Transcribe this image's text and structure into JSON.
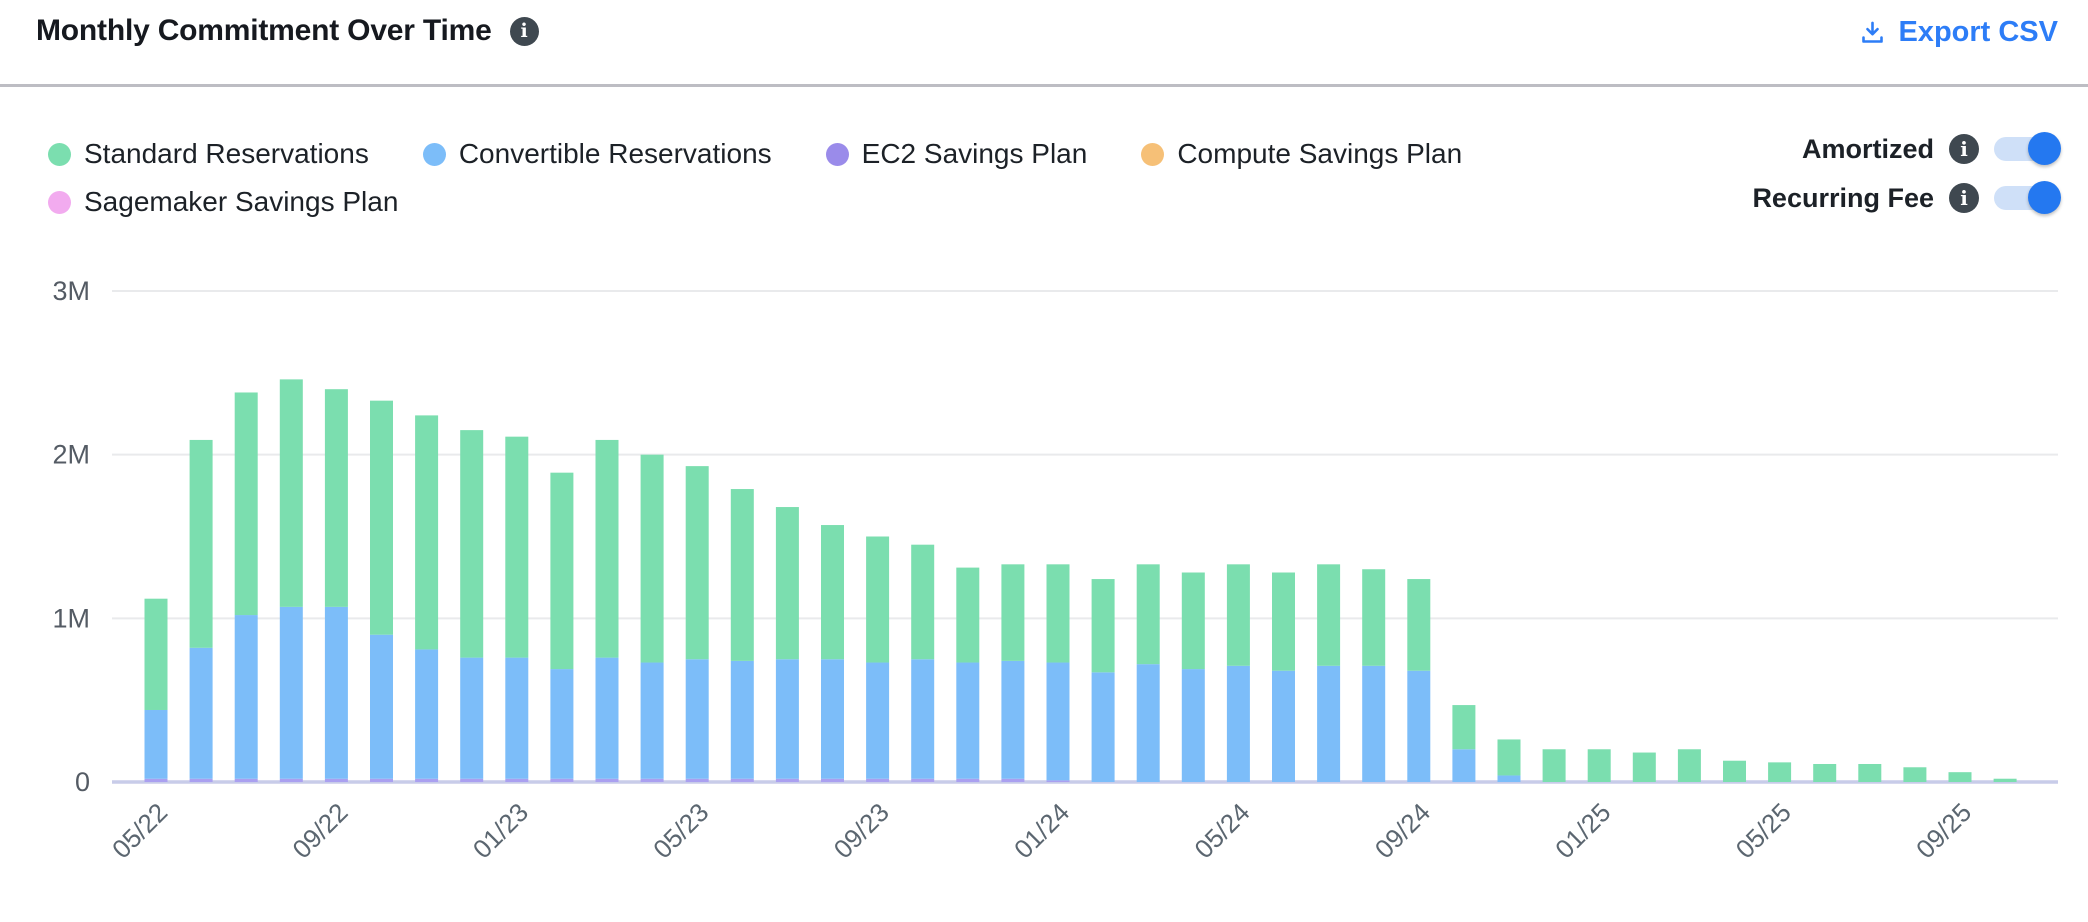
{
  "header": {
    "title": "Monthly Commitment Over Time",
    "export_label": "Export CSV",
    "export_color": "#2d7df7"
  },
  "legend": {
    "items": [
      {
        "label": "Standard Reservations",
        "color": "#7bdeaf"
      },
      {
        "label": "Convertible Reservations",
        "color": "#7cbdf9"
      },
      {
        "label": "EC2 Savings Plan",
        "color": "#9a8bea"
      },
      {
        "label": "Compute Savings Plan",
        "color": "#f6c077"
      },
      {
        "label": "Sagemaker Savings Plan",
        "color": "#f2abef"
      }
    ]
  },
  "toggles": [
    {
      "label": "Amortized",
      "on": true
    },
    {
      "label": "Recurring Fee",
      "on": true
    }
  ],
  "toggle_colors": {
    "track": "#cfe0f8",
    "knob": "#2478f0"
  },
  "chart_data": {
    "type": "bar",
    "stacked": true,
    "title": "Monthly Commitment Over Time",
    "xlabel": "",
    "ylabel": "",
    "unit": "M",
    "ylim": [
      0,
      3
    ],
    "grid": "horizontal",
    "legend_position": "top-left",
    "y_ticks": [
      {
        "value": 0,
        "label": "0"
      },
      {
        "value": 1,
        "label": "1M"
      },
      {
        "value": 2,
        "label": "2M"
      },
      {
        "value": 3,
        "label": "3M"
      }
    ],
    "x_tick_interval": 4,
    "x": [
      "05/22",
      "06/22",
      "07/22",
      "08/22",
      "09/22",
      "10/22",
      "11/22",
      "12/22",
      "01/23",
      "02/23",
      "03/23",
      "04/23",
      "05/23",
      "06/23",
      "07/23",
      "08/23",
      "09/23",
      "10/23",
      "11/23",
      "12/23",
      "01/24",
      "02/24",
      "03/24",
      "04/24",
      "05/24",
      "06/24",
      "07/24",
      "08/24",
      "09/24",
      "10/24",
      "11/24",
      "12/24",
      "01/25",
      "02/25",
      "03/25",
      "04/25",
      "05/25",
      "06/25",
      "07/25",
      "08/25",
      "09/25",
      "10/25"
    ],
    "series": [
      {
        "name": "Standard Reservations",
        "color": "#7bdeaf",
        "values": [
          0.68,
          1.27,
          1.36,
          1.39,
          1.33,
          1.43,
          1.43,
          1.39,
          1.35,
          1.2,
          1.33,
          1.27,
          1.18,
          1.05,
          0.93,
          0.82,
          0.77,
          0.7,
          0.58,
          0.59,
          0.6,
          0.57,
          0.61,
          0.59,
          0.62,
          0.6,
          0.62,
          0.59,
          0.56,
          0.27,
          0.22,
          0.2,
          0.2,
          0.18,
          0.2,
          0.13,
          0.12,
          0.11,
          0.11,
          0.09,
          0.06,
          0.02
        ]
      },
      {
        "name": "Convertible Reservations",
        "color": "#7cbdf9",
        "values": [
          0.42,
          0.8,
          1.0,
          1.05,
          1.05,
          0.88,
          0.79,
          0.74,
          0.74,
          0.67,
          0.74,
          0.71,
          0.73,
          0.72,
          0.73,
          0.73,
          0.71,
          0.73,
          0.71,
          0.72,
          0.72,
          0.67,
          0.72,
          0.69,
          0.71,
          0.68,
          0.71,
          0.71,
          0.68,
          0.2,
          0.04,
          0,
          0,
          0,
          0,
          0,
          0,
          0,
          0,
          0,
          0,
          0
        ]
      },
      {
        "name": "EC2 Savings Plan",
        "color": "#aaa0f0",
        "values": [
          0.02,
          0.02,
          0.02,
          0.02,
          0.02,
          0.02,
          0.02,
          0.02,
          0.02,
          0.02,
          0.02,
          0.02,
          0.02,
          0.02,
          0.02,
          0.02,
          0.02,
          0.02,
          0.02,
          0.02,
          0.01,
          0,
          0,
          0,
          0,
          0,
          0,
          0,
          0,
          0,
          0,
          0,
          0,
          0,
          0,
          0,
          0,
          0,
          0,
          0,
          0,
          0
        ]
      },
      {
        "name": "Compute Savings Plan",
        "color": "#f6c077",
        "values": [
          0,
          0,
          0,
          0,
          0,
          0,
          0,
          0,
          0,
          0,
          0,
          0,
          0,
          0,
          0,
          0,
          0,
          0,
          0,
          0,
          0,
          0,
          0,
          0,
          0,
          0,
          0,
          0,
          0,
          0,
          0,
          0,
          0,
          0,
          0,
          0,
          0,
          0,
          0,
          0,
          0,
          0
        ]
      },
      {
        "name": "Sagemaker Savings Plan",
        "color": "#f2abef",
        "values": [
          0,
          0,
          0,
          0,
          0,
          0,
          0,
          0,
          0,
          0,
          0,
          0,
          0,
          0,
          0,
          0,
          0,
          0,
          0,
          0,
          0,
          0,
          0,
          0,
          0,
          0,
          0,
          0,
          0,
          0,
          0,
          0,
          0,
          0,
          0,
          0,
          0,
          0,
          0,
          0,
          0,
          0
        ]
      }
    ]
  }
}
